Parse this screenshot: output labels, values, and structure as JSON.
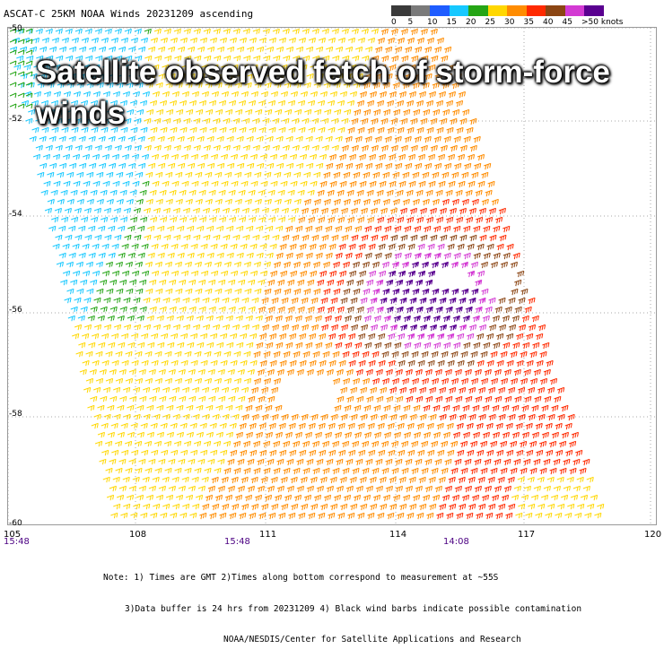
{
  "header": {
    "title": "ASCAT-C 25KM NOAA Winds 20231209 ascending"
  },
  "color_scale": {
    "labels": [
      "0",
      "5",
      "10",
      "15",
      "20",
      "25",
      "30",
      "35",
      "40",
      "45",
      ">50 knots"
    ],
    "colors": [
      "#3a3a3a",
      "#7a7a7a",
      "#1e5cff",
      "#16c8ff",
      "#25a515",
      "#ffd700",
      "#ff8c00",
      "#ff2a00",
      "#8b4513",
      "#d33ad3",
      "#5a0090"
    ]
  },
  "headline": {
    "line1": "Satellite observed fetch of storm-force",
    "line2": "winds"
  },
  "axes": {
    "lat_labels": [
      "-50",
      "-52",
      "-54",
      "-56",
      "-58",
      "-60"
    ],
    "lon_labels": [
      "105",
      "108",
      "111",
      "114",
      "117",
      "120"
    ],
    "time_labels": [
      "15:48",
      "15:48",
      "14:08"
    ]
  },
  "notes": {
    "line1": "Note: 1) Times are GMT 2)Times along bottom correspond to measurement at ~55S",
    "line2": "3)Data buffer is 24 hrs from 20231209 4) Black wind barbs indicate possible contamination",
    "line3": "NOAA/NESDIS/Center for Satellite Applications and Research"
  }
}
